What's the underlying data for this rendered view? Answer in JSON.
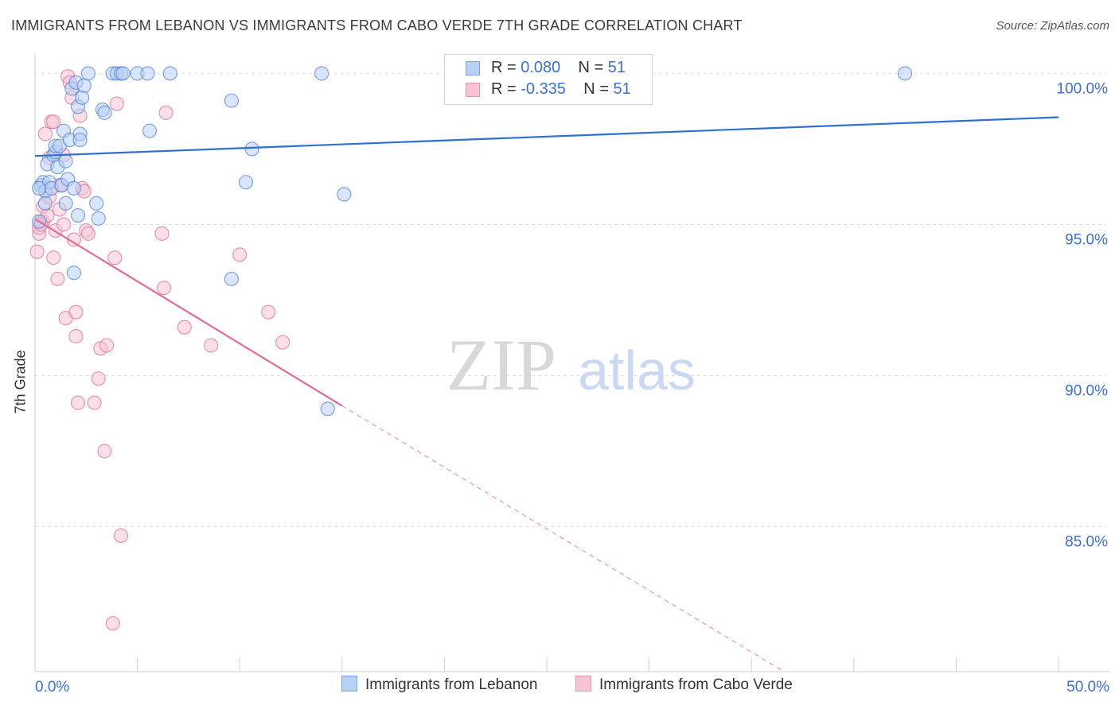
{
  "title": "IMMIGRANTS FROM LEBANON VS IMMIGRANTS FROM CABO VERDE 7TH GRADE CORRELATION CHART",
  "source": "Source: ZipAtlas.com",
  "watermark": {
    "zip": "ZIP",
    "atlas": "atlas"
  },
  "colors": {
    "blue": "#4a7fd8",
    "blue_fill": "#b8d0f5",
    "pink": "#e06b94",
    "pink_fill": "#f7c4d5",
    "tick": "#3a6fd8"
  },
  "legend": {
    "rows": [
      {
        "r_label": "R = ",
        "r_value": "0.080",
        "n_label": "N = ",
        "n_value": "51"
      },
      {
        "r_label": "R = ",
        "r_value": "-0.335",
        "n_label": "N = ",
        "n_value": "51"
      }
    ]
  },
  "bottom_legend": {
    "blue": "Immigrants from Lebanon",
    "pink": "Immigrants from Cabo Verde"
  },
  "chart_data": {
    "type": "scatter",
    "xlabel": "",
    "ylabel": "7th Grade",
    "xlim": [
      0,
      50
    ],
    "ylim": [
      80.2,
      100.8
    ],
    "x_tick_labels": {
      "left": "0.0%",
      "right": "50.0%"
    },
    "y_ticks": [
      {
        "value": 100,
        "label": "100.0%"
      },
      {
        "value": 95,
        "label": "95.0%"
      },
      {
        "value": 90,
        "label": "90.0%"
      },
      {
        "value": 85,
        "label": "85.0%"
      }
    ],
    "series": [
      {
        "name": "Immigrants from Lebanon",
        "color": "blue",
        "trend": {
          "x0": 0,
          "y0": 97.27,
          "x1": 50,
          "y1": 98.55
        },
        "points": [
          [
            0.3,
            96.3
          ],
          [
            0.4,
            96.4
          ],
          [
            0.5,
            96.1
          ],
          [
            0.5,
            95.7
          ],
          [
            0.6,
            97.0
          ],
          [
            0.7,
            96.4
          ],
          [
            0.8,
            96.2
          ],
          [
            0.9,
            97.3
          ],
          [
            1.0,
            97.4
          ],
          [
            1.0,
            97.6
          ],
          [
            1.1,
            96.9
          ],
          [
            1.2,
            97.6
          ],
          [
            1.3,
            96.3
          ],
          [
            1.4,
            98.1
          ],
          [
            1.5,
            97.1
          ],
          [
            1.5,
            95.7
          ],
          [
            1.6,
            96.5
          ],
          [
            1.7,
            97.8
          ],
          [
            1.8,
            99.5
          ],
          [
            1.9,
            96.2
          ],
          [
            1.9,
            93.4
          ],
          [
            2.0,
            99.7
          ],
          [
            2.1,
            98.9
          ],
          [
            2.1,
            95.3
          ],
          [
            2.2,
            98.0
          ],
          [
            2.2,
            97.8
          ],
          [
            2.3,
            99.2
          ],
          [
            2.4,
            99.6
          ],
          [
            2.6,
            100.0
          ],
          [
            3.0,
            95.7
          ],
          [
            3.1,
            95.2
          ],
          [
            3.3,
            98.8
          ],
          [
            3.4,
            98.7
          ],
          [
            3.8,
            100.0
          ],
          [
            4.0,
            100.0
          ],
          [
            4.2,
            100.0
          ],
          [
            4.3,
            100.0
          ],
          [
            5.0,
            100.0
          ],
          [
            5.5,
            100.0
          ],
          [
            5.6,
            98.1
          ],
          [
            6.6,
            100.0
          ],
          [
            9.6,
            99.1
          ],
          [
            9.6,
            93.2
          ],
          [
            10.3,
            96.4
          ],
          [
            10.6,
            97.5
          ],
          [
            14.0,
            100.0
          ],
          [
            14.3,
            88.9
          ],
          [
            15.1,
            96.0
          ],
          [
            42.5,
            100.0
          ],
          [
            0.2,
            95.1
          ],
          [
            0.2,
            96.2
          ]
        ]
      },
      {
        "name": "Immigrants from Cabo Verde",
        "color": "pink",
        "trend": {
          "x0": 0,
          "y0": 95.18,
          "x1": 15,
          "y1": 89.0,
          "dash_x1": 36.6,
          "dash_y1": 80.2
        },
        "points": [
          [
            0.1,
            94.1
          ],
          [
            0.2,
            94.7
          ],
          [
            0.3,
            95.1
          ],
          [
            0.4,
            95.1
          ],
          [
            0.4,
            95.6
          ],
          [
            0.5,
            98.0
          ],
          [
            0.6,
            95.3
          ],
          [
            0.7,
            97.2
          ],
          [
            0.8,
            98.4
          ],
          [
            0.9,
            98.4
          ],
          [
            0.9,
            93.9
          ],
          [
            1.0,
            94.8
          ],
          [
            1.1,
            93.2
          ],
          [
            1.2,
            95.5
          ],
          [
            1.2,
            96.3
          ],
          [
            1.4,
            97.3
          ],
          [
            1.4,
            95.0
          ],
          [
            1.5,
            91.9
          ],
          [
            1.6,
            99.9
          ],
          [
            1.7,
            99.7
          ],
          [
            1.8,
            99.2
          ],
          [
            1.9,
            94.5
          ],
          [
            2.0,
            92.1
          ],
          [
            2.0,
            91.3
          ],
          [
            2.1,
            89.1
          ],
          [
            2.2,
            98.6
          ],
          [
            2.3,
            96.2
          ],
          [
            2.4,
            96.1
          ],
          [
            2.5,
            94.8
          ],
          [
            2.6,
            94.7
          ],
          [
            2.9,
            89.1
          ],
          [
            3.1,
            89.9
          ],
          [
            3.2,
            90.9
          ],
          [
            3.4,
            87.5
          ],
          [
            3.5,
            91.0
          ],
          [
            3.8,
            81.8
          ],
          [
            3.9,
            93.9
          ],
          [
            4.0,
            99.0
          ],
          [
            4.2,
            84.7
          ],
          [
            6.2,
            94.7
          ],
          [
            6.3,
            92.9
          ],
          [
            6.4,
            98.7
          ],
          [
            7.3,
            91.6
          ],
          [
            8.6,
            91.0
          ],
          [
            10.0,
            94.0
          ],
          [
            11.4,
            92.1
          ],
          [
            12.1,
            91.1
          ],
          [
            0.2,
            94.9
          ],
          [
            0.7,
            95.9
          ],
          [
            1.3,
            96.3
          ],
          [
            0.3,
            95.0
          ]
        ]
      }
    ]
  }
}
